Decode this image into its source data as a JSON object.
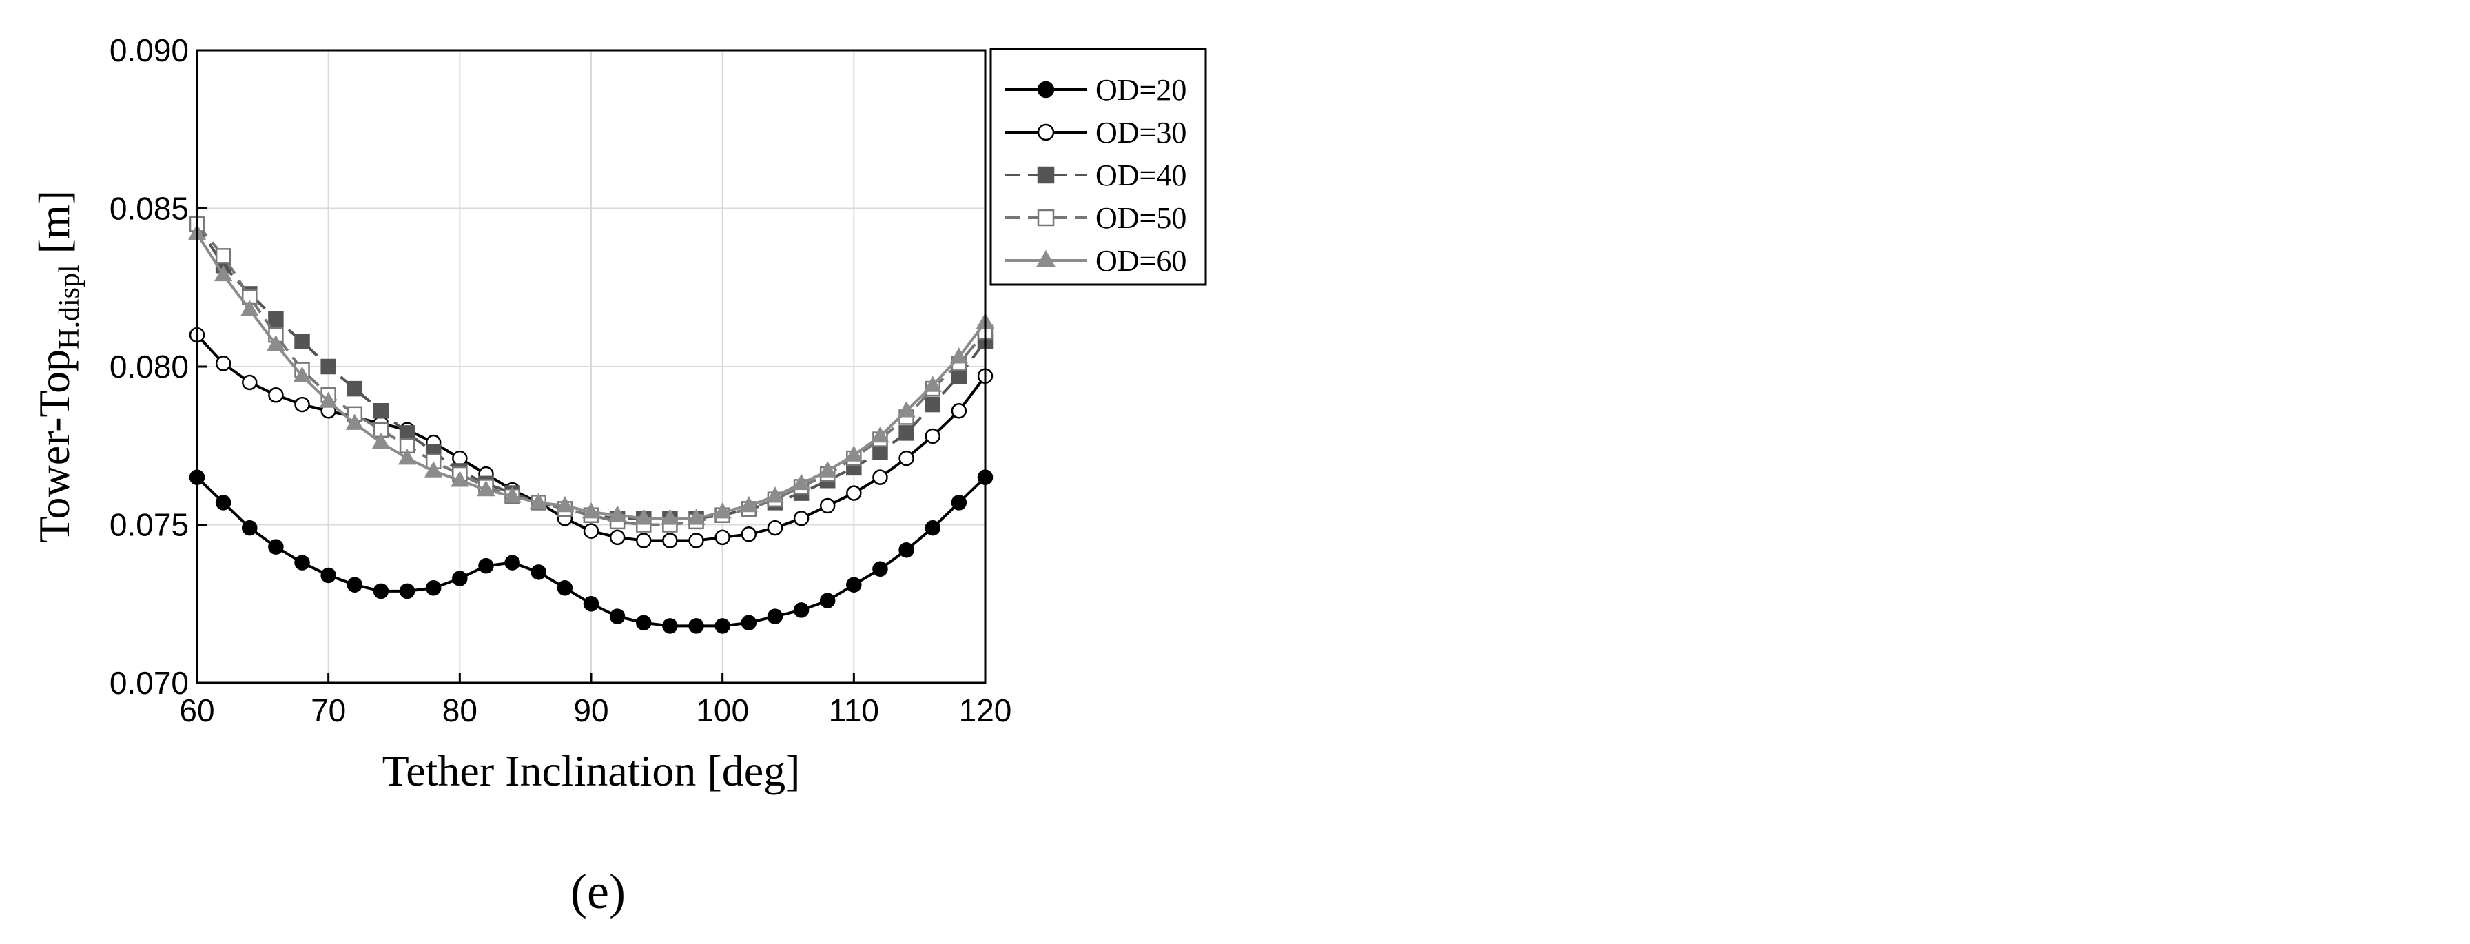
{
  "chart_data": {
    "type": "line",
    "xlabel": "Tether Inclination [deg]",
    "ylabel_main": "Tower-Top",
    "ylabel_sub": "H.displ",
    "ylabel_unit": " [m]",
    "xlim": [
      60,
      120
    ],
    "ylim": [
      0.07,
      0.09
    ],
    "xticks": [
      "60",
      "70",
      "80",
      "90",
      "100",
      "110",
      "120"
    ],
    "yticks": [
      "0.070",
      "0.075",
      "0.080",
      "0.085",
      "0.090"
    ],
    "grid": true,
    "legend_position": "outside-right",
    "x": [
      60,
      62,
      64,
      66,
      68,
      70,
      72,
      74,
      76,
      78,
      80,
      82,
      84,
      86,
      88,
      90,
      92,
      94,
      96,
      98,
      100,
      102,
      104,
      106,
      108,
      110,
      112,
      114,
      116,
      118,
      120
    ],
    "series": [
      {
        "name": "OD=20",
        "marker": "filled-circle",
        "dash": "solid",
        "color": "#000000",
        "values": [
          0.0765,
          0.0757,
          0.0749,
          0.0743,
          0.0738,
          0.0734,
          0.0731,
          0.0729,
          0.0729,
          0.073,
          0.0733,
          0.0737,
          0.0738,
          0.0735,
          0.073,
          0.0725,
          0.0721,
          0.0719,
          0.0718,
          0.0718,
          0.0718,
          0.0719,
          0.0721,
          0.0723,
          0.0726,
          0.0731,
          0.0736,
          0.0742,
          0.0749,
          0.0757,
          0.0765
        ]
      },
      {
        "name": "OD=30",
        "marker": "open-circle",
        "dash": "solid",
        "color": "#000000",
        "values": [
          0.081,
          0.0801,
          0.0795,
          0.0791,
          0.0788,
          0.0786,
          0.0784,
          0.0782,
          0.078,
          0.0776,
          0.0771,
          0.0766,
          0.0761,
          0.0757,
          0.0752,
          0.0748,
          0.0746,
          0.0745,
          0.0745,
          0.0745,
          0.0746,
          0.0747,
          0.0749,
          0.0752,
          0.0756,
          0.076,
          0.0765,
          0.0771,
          0.0778,
          0.0786,
          0.0797
        ]
      },
      {
        "name": "OD=40",
        "marker": "filled-square",
        "dash": "dashed",
        "color": "#555555",
        "values": [
          0.0845,
          0.0832,
          0.0823,
          0.0815,
          0.0808,
          0.08,
          0.0793,
          0.0786,
          0.0779,
          0.0773,
          0.0767,
          0.0763,
          0.076,
          0.0757,
          0.0755,
          0.0753,
          0.0752,
          0.0752,
          0.0752,
          0.0752,
          0.0753,
          0.0755,
          0.0757,
          0.076,
          0.0764,
          0.0768,
          0.0773,
          0.0779,
          0.0788,
          0.0797,
          0.0808
        ]
      },
      {
        "name": "OD=50",
        "marker": "open-square",
        "dash": "dashed",
        "color": "#777777",
        "values": [
          0.0845,
          0.0835,
          0.0822,
          0.081,
          0.0799,
          0.0791,
          0.0785,
          0.078,
          0.0775,
          0.077,
          0.0766,
          0.0762,
          0.0759,
          0.0757,
          0.0755,
          0.0753,
          0.0751,
          0.075,
          0.075,
          0.0751,
          0.0753,
          0.0755,
          0.0758,
          0.0762,
          0.0766,
          0.0771,
          0.0777,
          0.0784,
          0.0793,
          0.0801,
          0.0811
        ]
      },
      {
        "name": "OD=60",
        "marker": "filled-triangle",
        "dash": "solid",
        "color": "#8c8c8c",
        "values": [
          0.0842,
          0.0829,
          0.0818,
          0.0807,
          0.0797,
          0.0789,
          0.0782,
          0.0776,
          0.0771,
          0.0767,
          0.0764,
          0.0761,
          0.0759,
          0.0757,
          0.0756,
          0.0754,
          0.0753,
          0.0752,
          0.0752,
          0.0752,
          0.0754,
          0.0756,
          0.0759,
          0.0763,
          0.0767,
          0.0772,
          0.0778,
          0.0786,
          0.0794,
          0.0803,
          0.0814
        ]
      }
    ]
  },
  "caption": "(e)"
}
